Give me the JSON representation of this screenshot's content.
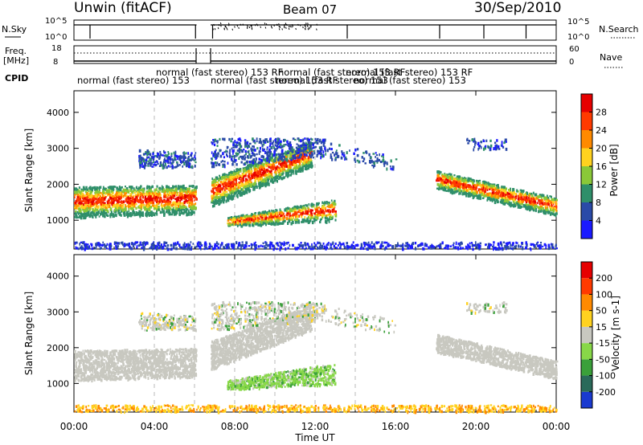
{
  "header": {
    "station": "Unwin (fitACF)",
    "beam": "Beam 07",
    "date": "30/Sep/2010"
  },
  "top_panels": {
    "nsky_label": "N.Sky",
    "nsearch_label": "N.Search",
    "nsky_ticks_left": [
      "10^5",
      "10^0"
    ],
    "nsky_ticks_right": [
      "10^5",
      "10^0"
    ],
    "freq_label_1": "Freq.",
    "freq_label_2": "[MHz]",
    "freq_ticks_left": [
      "18",
      "8"
    ],
    "nave_label": "Nave",
    "nave_ticks_right": [
      "60",
      "0"
    ],
    "cpid_label": "CPID",
    "cpid_segments": [
      "normal (fast stereo) 153",
      "normal (fast stereo) 153 RF",
      "normal (fast stereo) 153 RF",
      "normal (fast stereo) 153",
      "normal (fast stereo) 153 RF",
      "normal (fast stereo) 153 RF",
      "normal (fast stereo) 153"
    ]
  },
  "chart_data": [
    {
      "type": "heatmap",
      "title": "",
      "xlabel": "",
      "ylabel": "Slant Range [km]",
      "x_ticks": [
        "00:00",
        "04:00",
        "08:00",
        "12:00",
        "16:00",
        "20:00",
        "00:00"
      ],
      "y_ticks": [
        "1000",
        "2000",
        "3000",
        "4000"
      ],
      "ylim": [
        200,
        4600
      ],
      "colorbar_label": "Power [dB]",
      "colorbar_ticks": [
        "4",
        "8",
        "12",
        "16",
        "20",
        "24",
        "28"
      ],
      "colorbar_colors": [
        "#1a1aff",
        "#2a4aa8",
        "#2f8f6a",
        "#8ac838",
        "#ffd21f",
        "#ff8a00",
        "#ff3a00",
        "#e60000"
      ]
    },
    {
      "type": "heatmap",
      "title": "",
      "xlabel": "Time UT",
      "ylabel": "Slant Range [km]",
      "x_ticks": [
        "00:00",
        "04:00",
        "08:00",
        "12:00",
        "16:00",
        "20:00",
        "00:00"
      ],
      "y_ticks": [
        "1000",
        "2000",
        "3000",
        "4000"
      ],
      "ylim": [
        200,
        4600
      ],
      "colorbar_label": "Velocity [m s-1]",
      "colorbar_ticks": [
        "200",
        "100",
        "50",
        "15",
        "-15",
        "-50",
        "-100",
        "-200"
      ],
      "colorbar_colors": [
        "#1a3ad0",
        "#2a6a5a",
        "#3aa03a",
        "#88d848",
        "#c8c8c0",
        "#ffd21f",
        "#ff8a00",
        "#ff3a00",
        "#e60000"
      ]
    }
  ]
}
